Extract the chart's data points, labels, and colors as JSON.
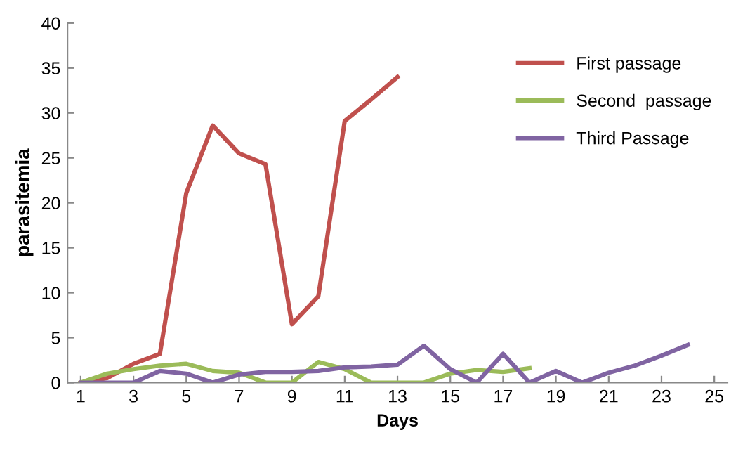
{
  "chart_data": {
    "type": "line",
    "xlabel": "Days",
    "ylabel": "parasitemia",
    "xlim": [
      0.5,
      25.5
    ],
    "ylim": [
      0,
      40
    ],
    "xticks": [
      1,
      3,
      5,
      7,
      9,
      11,
      13,
      15,
      17,
      19,
      21,
      23,
      25
    ],
    "yticks": [
      0,
      5,
      10,
      15,
      20,
      25,
      30,
      35,
      40
    ],
    "grid": false,
    "legend": "right",
    "marker": "none",
    "line_style": "solid",
    "series": [
      {
        "name": "First passage",
        "color": "#c0504d",
        "x": [
          1,
          2,
          3,
          4,
          5,
          6,
          7,
          8,
          9,
          10,
          11,
          12,
          13
        ],
        "values": [
          0,
          0.5,
          2.1,
          3.2,
          21.1,
          28.6,
          25.5,
          24.3,
          6.5,
          9.6,
          29.1,
          31.5,
          34
        ]
      },
      {
        "name": "Second  passage",
        "color": "#9bbb59",
        "x": [
          1,
          2,
          3,
          4,
          5,
          6,
          7,
          8,
          9,
          10,
          11,
          12,
          13,
          14,
          15,
          16,
          17,
          18
        ],
        "values": [
          0,
          1,
          1.5,
          1.9,
          2.1,
          1.3,
          1.1,
          0,
          0,
          2.3,
          1.5,
          0,
          0,
          0,
          1,
          1.4,
          1.2,
          1.6
        ]
      },
      {
        "name": "Third Passage",
        "color": "#8064a2",
        "x": [
          1,
          2,
          3,
          4,
          5,
          6,
          7,
          8,
          9,
          10,
          11,
          12,
          13,
          14,
          15,
          16,
          17,
          18,
          19,
          20,
          21,
          22,
          23,
          24
        ],
        "values": [
          0,
          0,
          0,
          1.3,
          1,
          0,
          0.9,
          1.2,
          1.2,
          1.3,
          1.7,
          1.8,
          2,
          4.1,
          1.5,
          0,
          3.2,
          0,
          1.3,
          0,
          1.1,
          1.9,
          3,
          4.2
        ]
      }
    ]
  }
}
